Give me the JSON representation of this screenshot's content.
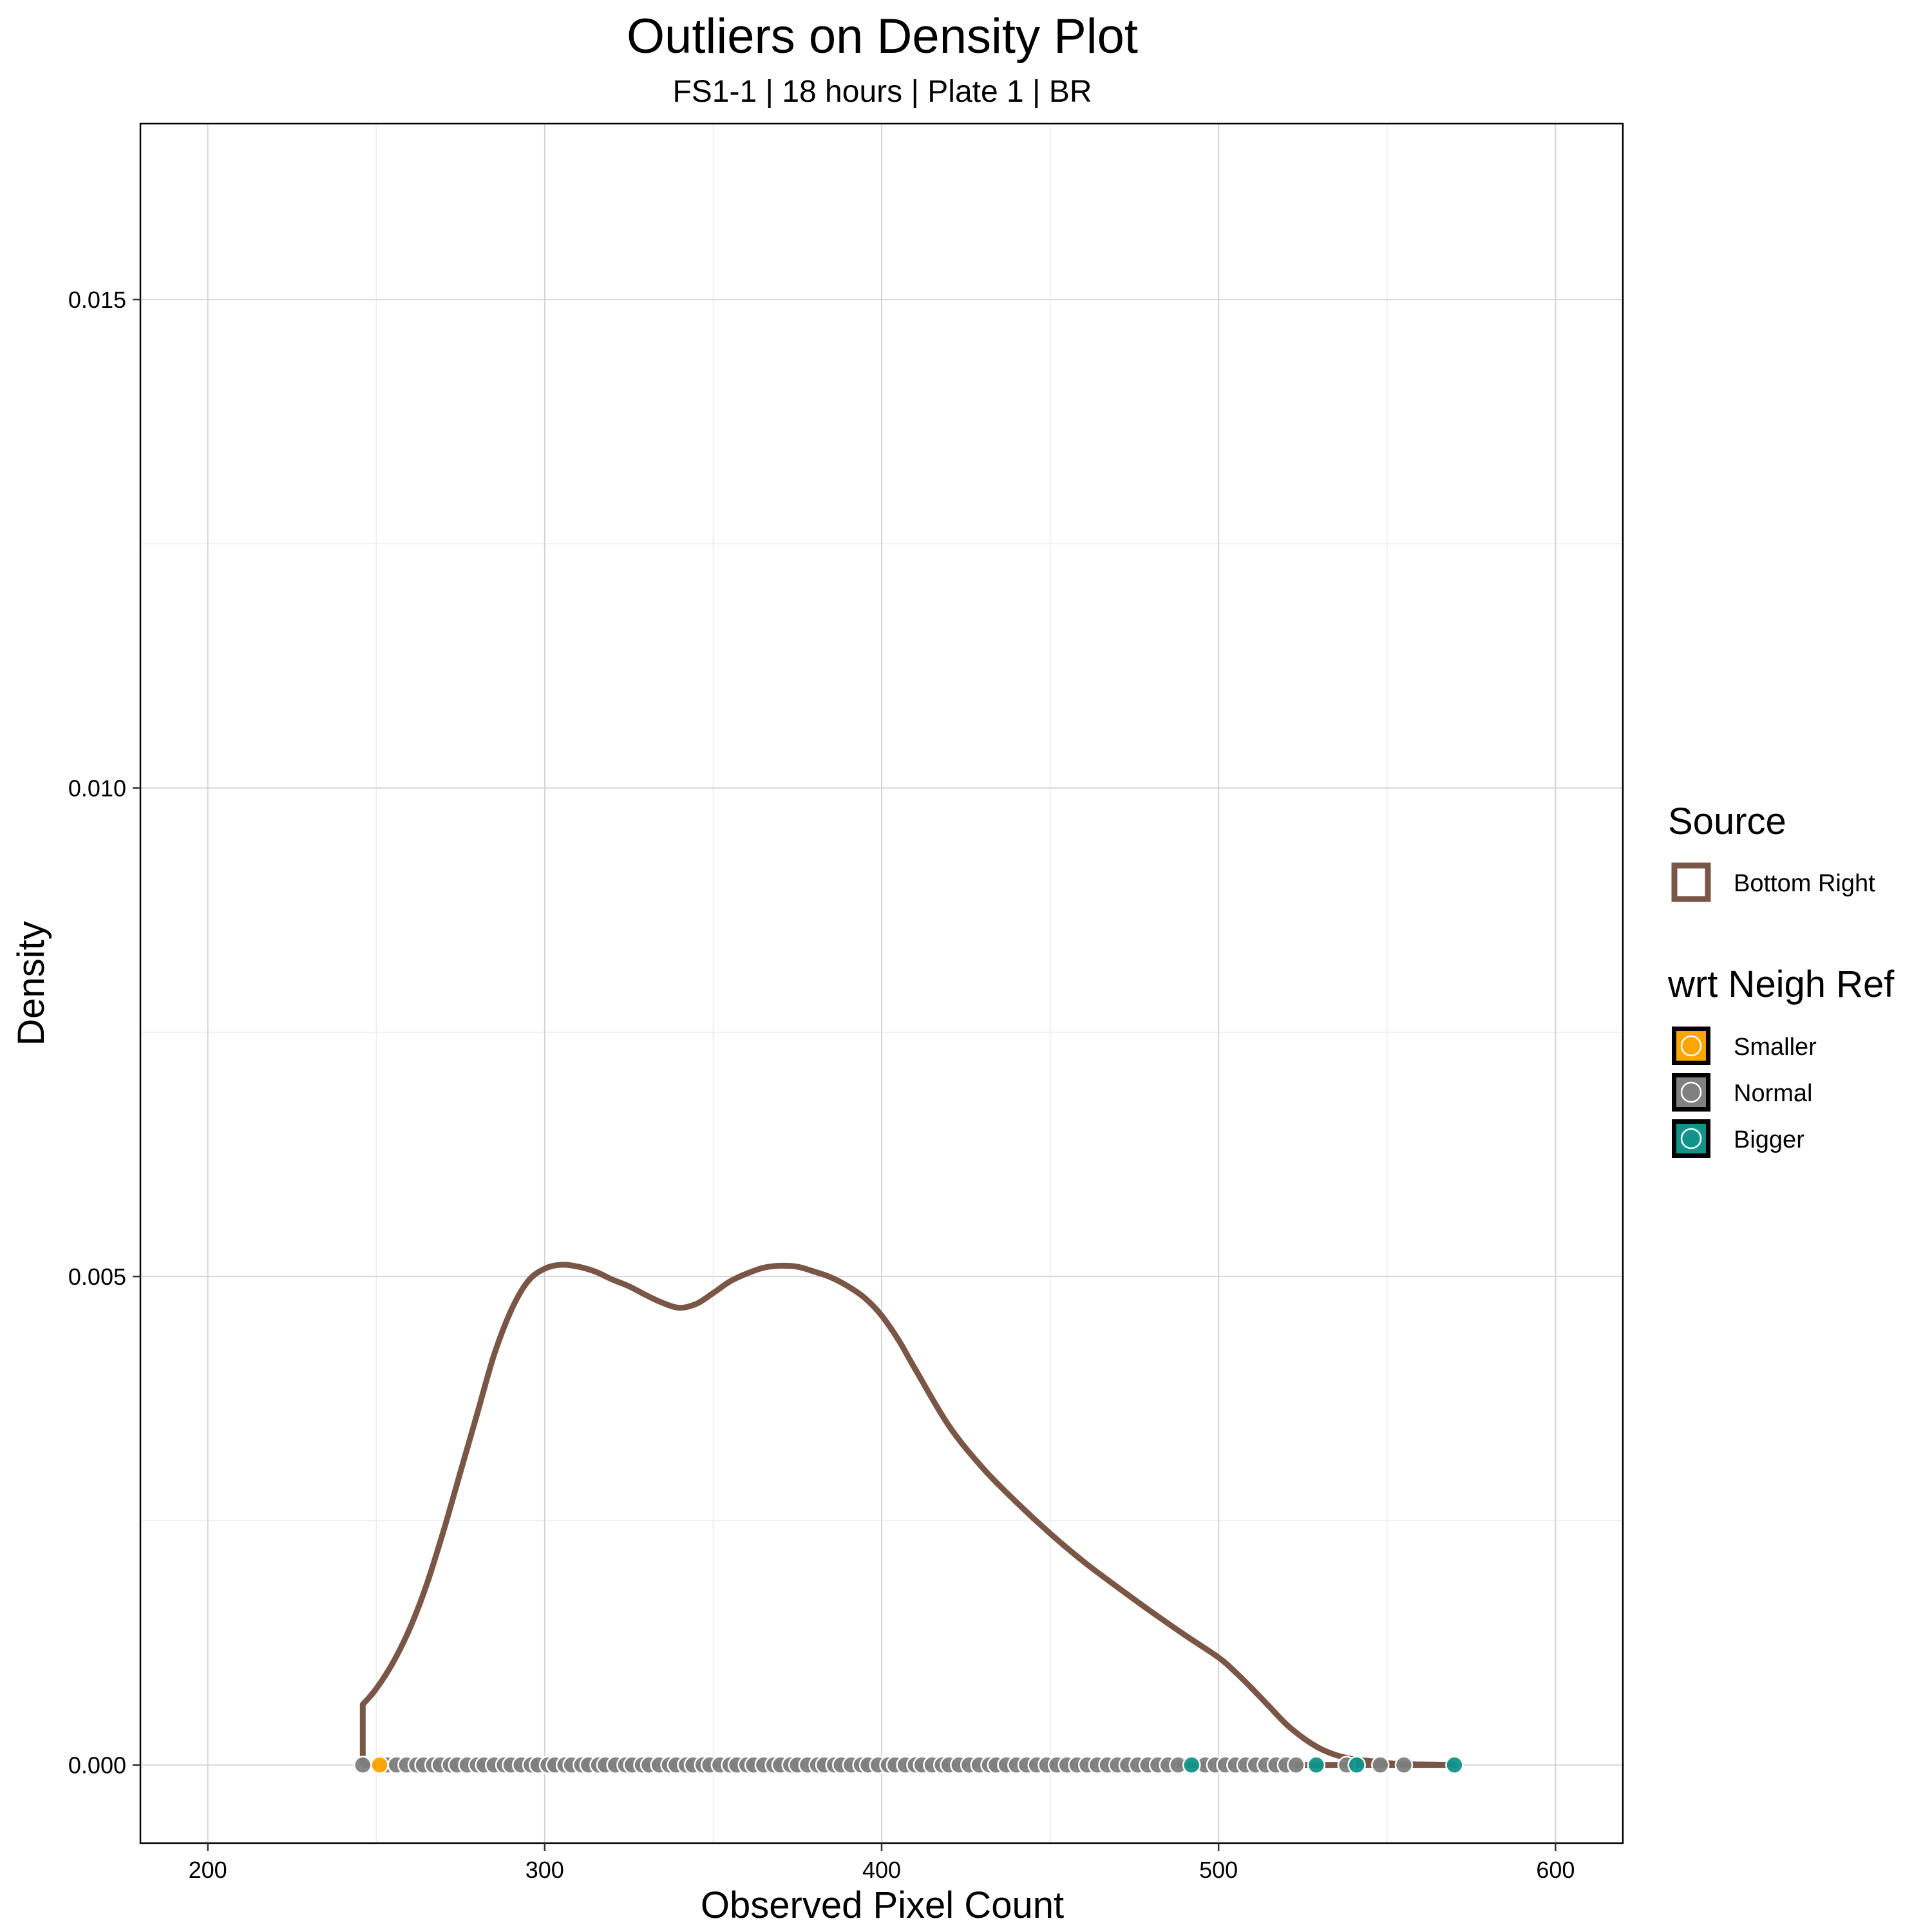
{
  "chart_data": {
    "type": "line",
    "title": "Outliers on Density Plot",
    "subtitle": "FS1-1 | 18 hours | Plate 1 | BR",
    "xlabel": "Observed Pixel Count",
    "ylabel": "Density",
    "xlim": [
      180,
      620
    ],
    "ylim": [
      -0.0008,
      0.0168
    ],
    "x_ticks": [
      200,
      300,
      400,
      500,
      600
    ],
    "y_ticks": [
      0.0,
      0.005,
      0.01,
      0.015
    ],
    "x_tick_labels": [
      "200",
      "300",
      "400",
      "500",
      "600"
    ],
    "y_tick_labels": [
      "0.000",
      "0.005",
      "0.010",
      "0.015"
    ],
    "grid": true,
    "density": {
      "name": "Bottom Right",
      "color": "#7a5646",
      "x": [
        246,
        246,
        250,
        255,
        260,
        265,
        270,
        275,
        280,
        285,
        290,
        295,
        300,
        305,
        310,
        315,
        320,
        325,
        330,
        335,
        340,
        345,
        350,
        355,
        360,
        365,
        370,
        375,
        380,
        385,
        390,
        395,
        400,
        405,
        410,
        420,
        430,
        440,
        450,
        460,
        470,
        480,
        490,
        500,
        505,
        510,
        515,
        520,
        525,
        530,
        535,
        540,
        545,
        550,
        555,
        560,
        565,
        570
      ],
      "y": [
        0,
        0.00062,
        0.00078,
        0.00105,
        0.0014,
        0.00185,
        0.0024,
        0.003,
        0.0036,
        0.0042,
        0.00465,
        0.00495,
        0.00508,
        0.00512,
        0.0051,
        0.00505,
        0.00497,
        0.0049,
        0.00481,
        0.00473,
        0.00468,
        0.00472,
        0.00483,
        0.00495,
        0.00503,
        0.00509,
        0.00511,
        0.0051,
        0.00505,
        0.00499,
        0.0049,
        0.00478,
        0.0046,
        0.00435,
        0.00405,
        0.00347,
        0.00304,
        0.00269,
        0.00237,
        0.00208,
        0.00182,
        0.00157,
        0.00133,
        0.0011,
        0.00095,
        0.00078,
        0.0006,
        0.00042,
        0.00028,
        0.00017,
        0.0001,
        6e-05,
        4e-05,
        2e-05,
        1e-05,
        5e-06,
        2e-06,
        0
      ]
    },
    "points": [
      {
        "x": 246,
        "group": "Normal"
      },
      {
        "x": 251,
        "group": "Smaller"
      },
      {
        "x": 253,
        "group": "Normal"
      },
      {
        "x": 256,
        "group": "Normal"
      },
      {
        "x": 259,
        "group": "Normal"
      },
      {
        "x": 262,
        "group": "Normal"
      },
      {
        "x": 264,
        "group": "Normal"
      },
      {
        "x": 267,
        "group": "Normal"
      },
      {
        "x": 269,
        "group": "Normal"
      },
      {
        "x": 272,
        "group": "Normal"
      },
      {
        "x": 274,
        "group": "Normal"
      },
      {
        "x": 277,
        "group": "Normal"
      },
      {
        "x": 280,
        "group": "Normal"
      },
      {
        "x": 282,
        "group": "Normal"
      },
      {
        "x": 285,
        "group": "Normal"
      },
      {
        "x": 288,
        "group": "Normal"
      },
      {
        "x": 290,
        "group": "Normal"
      },
      {
        "x": 293,
        "group": "Normal"
      },
      {
        "x": 296,
        "group": "Normal"
      },
      {
        "x": 298,
        "group": "Normal"
      },
      {
        "x": 301,
        "group": "Normal"
      },
      {
        "x": 303,
        "group": "Normal"
      },
      {
        "x": 306,
        "group": "Normal"
      },
      {
        "x": 308,
        "group": "Normal"
      },
      {
        "x": 311,
        "group": "Normal"
      },
      {
        "x": 313,
        "group": "Normal"
      },
      {
        "x": 316,
        "group": "Normal"
      },
      {
        "x": 318,
        "group": "Normal"
      },
      {
        "x": 321,
        "group": "Normal"
      },
      {
        "x": 324,
        "group": "Normal"
      },
      {
        "x": 326,
        "group": "Normal"
      },
      {
        "x": 329,
        "group": "Normal"
      },
      {
        "x": 331,
        "group": "Normal"
      },
      {
        "x": 334,
        "group": "Normal"
      },
      {
        "x": 337,
        "group": "Normal"
      },
      {
        "x": 339,
        "group": "Normal"
      },
      {
        "x": 342,
        "group": "Normal"
      },
      {
        "x": 344,
        "group": "Normal"
      },
      {
        "x": 347,
        "group": "Normal"
      },
      {
        "x": 349,
        "group": "Normal"
      },
      {
        "x": 352,
        "group": "Normal"
      },
      {
        "x": 355,
        "group": "Normal"
      },
      {
        "x": 357,
        "group": "Normal"
      },
      {
        "x": 360,
        "group": "Normal"
      },
      {
        "x": 362,
        "group": "Normal"
      },
      {
        "x": 365,
        "group": "Normal"
      },
      {
        "x": 368,
        "group": "Normal"
      },
      {
        "x": 370,
        "group": "Normal"
      },
      {
        "x": 373,
        "group": "Normal"
      },
      {
        "x": 375,
        "group": "Normal"
      },
      {
        "x": 378,
        "group": "Normal"
      },
      {
        "x": 381,
        "group": "Normal"
      },
      {
        "x": 383,
        "group": "Normal"
      },
      {
        "x": 386,
        "group": "Normal"
      },
      {
        "x": 388,
        "group": "Normal"
      },
      {
        "x": 391,
        "group": "Normal"
      },
      {
        "x": 394,
        "group": "Normal"
      },
      {
        "x": 396,
        "group": "Normal"
      },
      {
        "x": 399,
        "group": "Normal"
      },
      {
        "x": 402,
        "group": "Normal"
      },
      {
        "x": 404,
        "group": "Normal"
      },
      {
        "x": 407,
        "group": "Normal"
      },
      {
        "x": 410,
        "group": "Normal"
      },
      {
        "x": 412,
        "group": "Normal"
      },
      {
        "x": 415,
        "group": "Normal"
      },
      {
        "x": 418,
        "group": "Normal"
      },
      {
        "x": 420,
        "group": "Normal"
      },
      {
        "x": 423,
        "group": "Normal"
      },
      {
        "x": 426,
        "group": "Normal"
      },
      {
        "x": 429,
        "group": "Normal"
      },
      {
        "x": 432,
        "group": "Normal"
      },
      {
        "x": 434,
        "group": "Normal"
      },
      {
        "x": 437,
        "group": "Normal"
      },
      {
        "x": 440,
        "group": "Normal"
      },
      {
        "x": 443,
        "group": "Normal"
      },
      {
        "x": 446,
        "group": "Normal"
      },
      {
        "x": 449,
        "group": "Normal"
      },
      {
        "x": 452,
        "group": "Normal"
      },
      {
        "x": 455,
        "group": "Normal"
      },
      {
        "x": 458,
        "group": "Normal"
      },
      {
        "x": 461,
        "group": "Normal"
      },
      {
        "x": 464,
        "group": "Normal"
      },
      {
        "x": 467,
        "group": "Normal"
      },
      {
        "x": 470,
        "group": "Normal"
      },
      {
        "x": 473,
        "group": "Normal"
      },
      {
        "x": 476,
        "group": "Normal"
      },
      {
        "x": 479,
        "group": "Normal"
      },
      {
        "x": 482,
        "group": "Normal"
      },
      {
        "x": 485,
        "group": "Normal"
      },
      {
        "x": 488,
        "group": "Normal"
      },
      {
        "x": 492,
        "group": "Bigger"
      },
      {
        "x": 496,
        "group": "Normal"
      },
      {
        "x": 499,
        "group": "Normal"
      },
      {
        "x": 502,
        "group": "Normal"
      },
      {
        "x": 505,
        "group": "Normal"
      },
      {
        "x": 508,
        "group": "Normal"
      },
      {
        "x": 511,
        "group": "Normal"
      },
      {
        "x": 514,
        "group": "Normal"
      },
      {
        "x": 517,
        "group": "Normal"
      },
      {
        "x": 520,
        "group": "Normal"
      },
      {
        "x": 523,
        "group": "Normal"
      },
      {
        "x": 529,
        "group": "Bigger"
      },
      {
        "x": 538,
        "group": "Normal"
      },
      {
        "x": 541,
        "group": "Bigger"
      },
      {
        "x": 548,
        "group": "Normal"
      },
      {
        "x": 555,
        "group": "Normal"
      },
      {
        "x": 570,
        "group": "Bigger"
      }
    ],
    "legend": {
      "placement": "right",
      "source_title": "Source",
      "source_items": [
        {
          "label": "Bottom Right",
          "color": "#7a5646"
        }
      ],
      "group_title": "wrt Neigh Ref",
      "group_items": [
        {
          "label": "Smaller",
          "color": "#ffa500"
        },
        {
          "label": "Normal",
          "color": "#808080"
        },
        {
          "label": "Bigger",
          "color": "#10948a"
        }
      ]
    }
  }
}
